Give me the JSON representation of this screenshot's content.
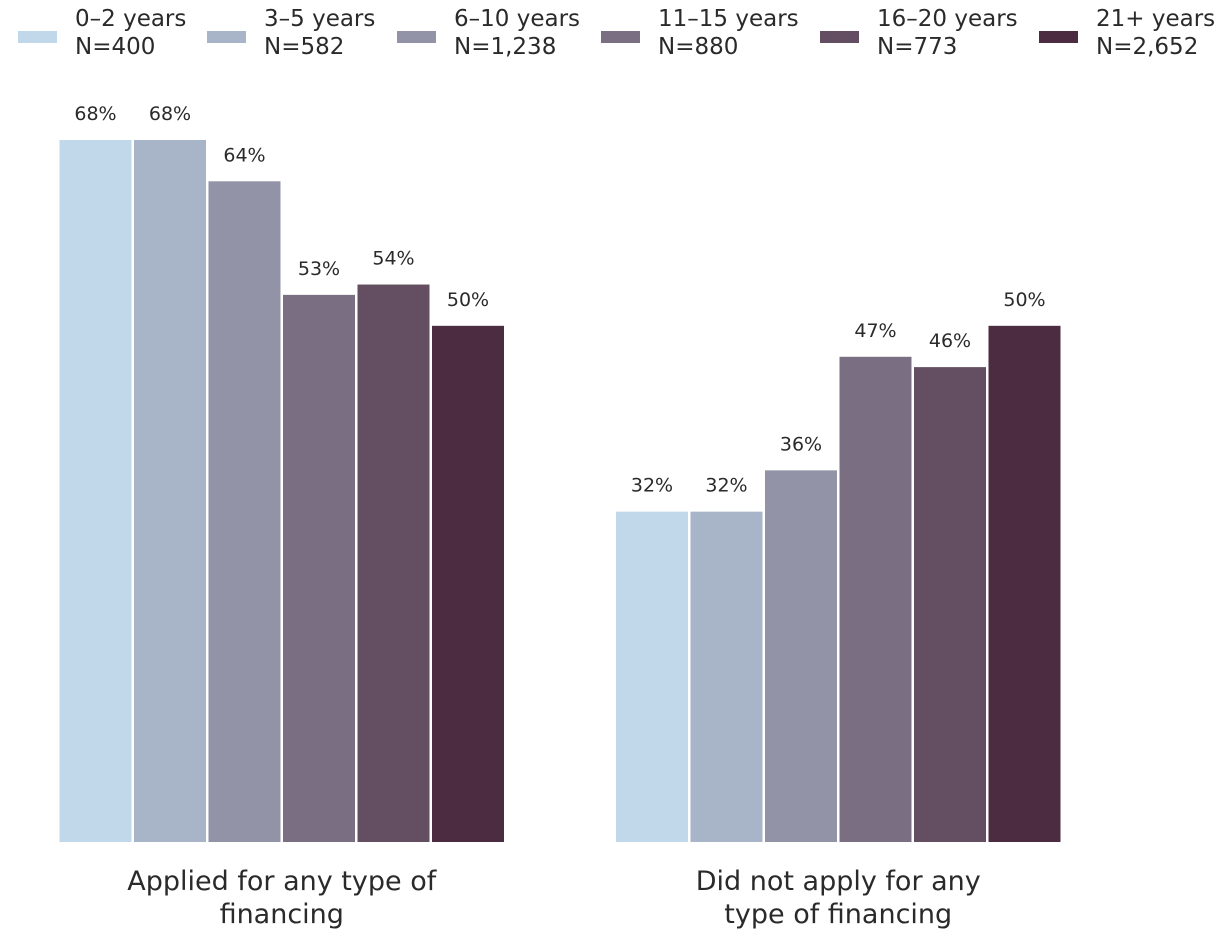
{
  "chart_data": {
    "type": "bar",
    "categories": [
      "Applied for any type of financing",
      "Did not apply for any type of financing"
    ],
    "category_lines": [
      [
        "Applied for any type of",
        "financing"
      ],
      [
        "Did not apply for any",
        "type of financing"
      ]
    ],
    "series": [
      {
        "name": "0–2 years",
        "n_label": "N=400",
        "color": "#c1d7ea",
        "values": [
          68,
          32
        ],
        "labels": [
          "68%",
          "32%"
        ]
      },
      {
        "name": "3–5 years",
        "n_label": "N=582",
        "color": "#a8b5c9",
        "values": [
          68,
          32
        ],
        "labels": [
          "68%",
          "32%"
        ]
      },
      {
        "name": "6–10 years",
        "n_label": "N=1,238",
        "color": "#9393a7",
        "values": [
          64,
          36
        ],
        "labels": [
          "64%",
          "36%"
        ]
      },
      {
        "name": "11–15 years",
        "n_label": "N=880",
        "color": "#7a6f82",
        "values": [
          53,
          47
        ],
        "labels": [
          "53%",
          "47%"
        ]
      },
      {
        "name": "16–20 years",
        "n_label": "N=773",
        "color": "#634f61",
        "values": [
          54,
          46
        ],
        "labels": [
          "54%",
          "46%"
        ]
      },
      {
        "name": "21+ years",
        "n_label": "N=2,652",
        "color": "#4b2c40",
        "values": [
          50,
          50
        ],
        "labels": [
          "50%",
          "50%"
        ]
      }
    ],
    "ylim": [
      0,
      68
    ],
    "grid": false,
    "legend_position": "top",
    "title": "",
    "xlabel": "",
    "ylabel": ""
  }
}
